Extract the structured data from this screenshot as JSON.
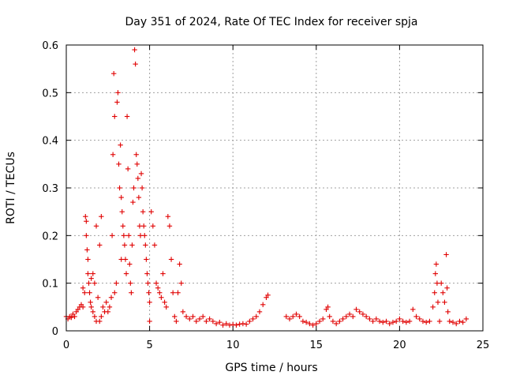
{
  "chart_data": {
    "type": "scatter",
    "title": "Day 351 of 2024, Rate Of TEC Index for receiver spja",
    "xlabel": "GPS time / hours",
    "ylabel": "ROTI / TECUs",
    "xlim": [
      0,
      25
    ],
    "ylim": [
      0,
      0.6
    ],
    "x_ticks": [
      0,
      5,
      10,
      15,
      20,
      25
    ],
    "y_ticks": [
      0,
      0.1,
      0.2,
      0.3,
      0.4,
      0.5,
      0.6
    ],
    "x_tick_labels": [
      "0",
      "5",
      "10",
      "15",
      "20",
      "25"
    ],
    "y_tick_labels": [
      "0",
      "0.1",
      "0.2",
      "0.3",
      "0.4",
      "0.5",
      "0.6"
    ],
    "grid": true,
    "marker": "+",
    "color": "#e00000",
    "series": [
      {
        "points": [
          [
            0.0,
            0.03
          ],
          [
            0.1,
            0.025
          ],
          [
            0.2,
            0.03
          ],
          [
            0.3,
            0.028
          ],
          [
            0.4,
            0.035
          ],
          [
            0.5,
            0.03
          ],
          [
            0.6,
            0.04
          ],
          [
            0.7,
            0.045
          ],
          [
            0.8,
            0.05
          ],
          [
            0.9,
            0.055
          ],
          [
            1.0,
            0.05
          ],
          [
            1.0,
            0.09
          ],
          [
            1.1,
            0.08
          ],
          [
            1.15,
            0.24
          ],
          [
            1.2,
            0.23
          ],
          [
            1.2,
            0.2
          ],
          [
            1.25,
            0.17
          ],
          [
            1.3,
            0.15
          ],
          [
            1.3,
            0.12
          ],
          [
            1.35,
            0.1
          ],
          [
            1.4,
            0.08
          ],
          [
            1.45,
            0.06
          ],
          [
            1.5,
            0.11
          ],
          [
            1.5,
            0.05
          ],
          [
            1.6,
            0.12
          ],
          [
            1.6,
            0.04
          ],
          [
            1.7,
            0.1
          ],
          [
            1.7,
            0.03
          ],
          [
            1.8,
            0.22
          ],
          [
            1.8,
            0.02
          ],
          [
            1.9,
            0.07
          ],
          [
            2.0,
            0.18
          ],
          [
            2.0,
            0.02
          ],
          [
            2.1,
            0.24
          ],
          [
            2.1,
            0.03
          ],
          [
            2.2,
            0.05
          ],
          [
            2.3,
            0.04
          ],
          [
            2.4,
            0.06
          ],
          [
            2.5,
            0.04
          ],
          [
            2.6,
            0.05
          ],
          [
            2.7,
            0.07
          ],
          [
            2.75,
            0.2
          ],
          [
            2.8,
            0.37
          ],
          [
            2.85,
            0.54
          ],
          [
            2.9,
            0.45
          ],
          [
            2.9,
            0.08
          ],
          [
            3.0,
            0.1
          ],
          [
            3.05,
            0.48
          ],
          [
            3.1,
            0.5
          ],
          [
            3.15,
            0.35
          ],
          [
            3.2,
            0.3
          ],
          [
            3.25,
            0.39
          ],
          [
            3.3,
            0.28
          ],
          [
            3.3,
            0.15
          ],
          [
            3.35,
            0.25
          ],
          [
            3.4,
            0.22
          ],
          [
            3.45,
            0.2
          ],
          [
            3.5,
            0.18
          ],
          [
            3.55,
            0.15
          ],
          [
            3.6,
            0.12
          ],
          [
            3.65,
            0.45
          ],
          [
            3.7,
            0.34
          ],
          [
            3.75,
            0.2
          ],
          [
            3.8,
            0.14
          ],
          [
            3.85,
            0.1
          ],
          [
            3.9,
            0.08
          ],
          [
            3.95,
            0.18
          ],
          [
            4.0,
            0.27
          ],
          [
            4.05,
            0.3
          ],
          [
            4.1,
            0.59
          ],
          [
            4.15,
            0.56
          ],
          [
            4.2,
            0.37
          ],
          [
            4.25,
            0.35
          ],
          [
            4.3,
            0.32
          ],
          [
            4.35,
            0.28
          ],
          [
            4.4,
            0.22
          ],
          [
            4.45,
            0.2
          ],
          [
            4.5,
            0.33
          ],
          [
            4.55,
            0.3
          ],
          [
            4.6,
            0.25
          ],
          [
            4.65,
            0.22
          ],
          [
            4.7,
            0.2
          ],
          [
            4.75,
            0.18
          ],
          [
            4.8,
            0.15
          ],
          [
            4.85,
            0.12
          ],
          [
            4.9,
            0.1
          ],
          [
            4.95,
            0.08
          ],
          [
            5.0,
            0.06
          ],
          [
            5.0,
            0.02
          ],
          [
            5.1,
            0.25
          ],
          [
            5.2,
            0.22
          ],
          [
            5.3,
            0.18
          ],
          [
            5.4,
            0.1
          ],
          [
            5.5,
            0.09
          ],
          [
            5.6,
            0.08
          ],
          [
            5.7,
            0.07
          ],
          [
            5.8,
            0.12
          ],
          [
            5.9,
            0.06
          ],
          [
            6.0,
            0.05
          ],
          [
            6.1,
            0.24
          ],
          [
            6.2,
            0.22
          ],
          [
            6.3,
            0.15
          ],
          [
            6.4,
            0.08
          ],
          [
            6.5,
            0.03
          ],
          [
            6.6,
            0.02
          ],
          [
            6.7,
            0.08
          ],
          [
            6.8,
            0.14
          ],
          [
            6.9,
            0.1
          ],
          [
            7.0,
            0.04
          ],
          [
            7.2,
            0.03
          ],
          [
            7.4,
            0.025
          ],
          [
            7.6,
            0.03
          ],
          [
            7.8,
            0.02
          ],
          [
            8.0,
            0.025
          ],
          [
            8.2,
            0.03
          ],
          [
            8.4,
            0.02
          ],
          [
            8.6,
            0.025
          ],
          [
            8.8,
            0.02
          ],
          [
            9.0,
            0.015
          ],
          [
            9.2,
            0.018
          ],
          [
            9.4,
            0.012
          ],
          [
            9.6,
            0.015
          ],
          [
            9.8,
            0.012
          ],
          [
            10.0,
            0.013
          ],
          [
            10.2,
            0.012
          ],
          [
            10.4,
            0.014
          ],
          [
            10.6,
            0.015
          ],
          [
            10.8,
            0.014
          ],
          [
            11.0,
            0.02
          ],
          [
            11.2,
            0.025
          ],
          [
            11.4,
            0.03
          ],
          [
            11.6,
            0.04
          ],
          [
            11.8,
            0.055
          ],
          [
            12.0,
            0.07
          ],
          [
            12.1,
            0.075
          ],
          [
            13.2,
            0.03
          ],
          [
            13.4,
            0.025
          ],
          [
            13.6,
            0.03
          ],
          [
            13.8,
            0.035
          ],
          [
            14.0,
            0.03
          ],
          [
            14.2,
            0.02
          ],
          [
            14.4,
            0.018
          ],
          [
            14.6,
            0.015
          ],
          [
            14.8,
            0.012
          ],
          [
            15.0,
            0.015
          ],
          [
            15.2,
            0.02
          ],
          [
            15.4,
            0.025
          ],
          [
            15.6,
            0.045
          ],
          [
            15.7,
            0.05
          ],
          [
            15.8,
            0.03
          ],
          [
            16.0,
            0.02
          ],
          [
            16.2,
            0.015
          ],
          [
            16.4,
            0.02
          ],
          [
            16.6,
            0.025
          ],
          [
            16.8,
            0.03
          ],
          [
            17.0,
            0.035
          ],
          [
            17.2,
            0.03
          ],
          [
            17.4,
            0.045
          ],
          [
            17.6,
            0.04
          ],
          [
            17.8,
            0.035
          ],
          [
            18.0,
            0.03
          ],
          [
            18.2,
            0.025
          ],
          [
            18.4,
            0.02
          ],
          [
            18.6,
            0.025
          ],
          [
            18.8,
            0.02
          ],
          [
            19.0,
            0.018
          ],
          [
            19.2,
            0.02
          ],
          [
            19.4,
            0.015
          ],
          [
            19.6,
            0.018
          ],
          [
            19.8,
            0.02
          ],
          [
            20.0,
            0.025
          ],
          [
            20.2,
            0.02
          ],
          [
            20.4,
            0.018
          ],
          [
            20.6,
            0.02
          ],
          [
            20.8,
            0.045
          ],
          [
            21.0,
            0.03
          ],
          [
            21.2,
            0.025
          ],
          [
            21.4,
            0.02
          ],
          [
            21.6,
            0.018
          ],
          [
            21.8,
            0.02
          ],
          [
            22.0,
            0.05
          ],
          [
            22.1,
            0.08
          ],
          [
            22.15,
            0.12
          ],
          [
            22.2,
            0.14
          ],
          [
            22.25,
            0.1
          ],
          [
            22.3,
            0.06
          ],
          [
            22.4,
            0.02
          ],
          [
            22.5,
            0.1
          ],
          [
            22.6,
            0.08
          ],
          [
            22.7,
            0.06
          ],
          [
            22.8,
            0.16
          ],
          [
            22.85,
            0.09
          ],
          [
            22.9,
            0.04
          ],
          [
            23.0,
            0.02
          ],
          [
            23.2,
            0.018
          ],
          [
            23.4,
            0.015
          ],
          [
            23.6,
            0.02
          ],
          [
            23.8,
            0.018
          ],
          [
            24.0,
            0.025
          ]
        ]
      }
    ]
  }
}
